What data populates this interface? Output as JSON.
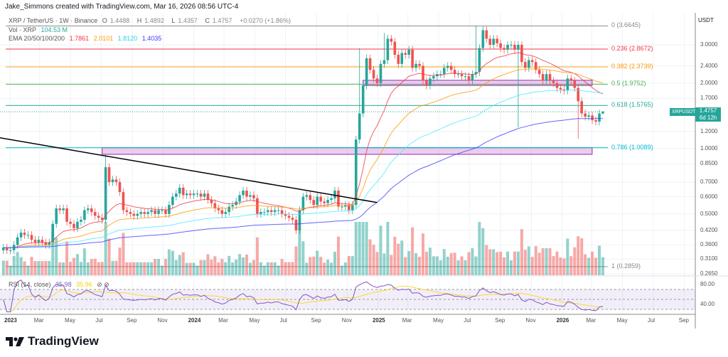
{
  "header": {
    "credit": "Jake_Simmons created with TradingView.com, Mar 16, 2026 08:56 UTC-4",
    "symbol": "XRP / TetherUS · 1W · Binance",
    "ohlc": {
      "o_label": "O",
      "o": "1.4488",
      "h_label": "H",
      "h": "1.4892",
      "l_label": "L",
      "l": "1.4357",
      "c_label": "C",
      "c": "1.4757",
      "change": "+0.0270 (+1.86%)"
    },
    "vol_label": "Vol · XRP",
    "vol_value": "104.53 M",
    "ema_label": "EMA 20/50/100/200",
    "ema_values": [
      "1.7861",
      "2.0101",
      "1.8120",
      "1.4035"
    ],
    "rsi_label": "RSI (14, close)",
    "rsi_value": "35.98",
    "rsi_ma_value": "35.96"
  },
  "price_axis": {
    "unit": "USDT",
    "ticks": [
      "3.0000",
      "2.4000",
      "2.0000",
      "1.7000",
      "1.2000",
      "1.0000",
      "0.8500",
      "0.7000",
      "0.6000",
      "0.5000",
      "0.4200",
      "0.3600",
      "0.3100",
      "0.2650"
    ],
    "current_symbol": "XRPUSDT",
    "current_price": "1.4757",
    "countdown": "6d 12h"
  },
  "rsi_axis": {
    "ticks": [
      "80.00",
      "40.00"
    ]
  },
  "time_axis": {
    "ticks": [
      {
        "label": "2023",
        "date": "2023-01-01",
        "bold": true
      },
      {
        "label": "Mar",
        "date": "2023-03-01"
      },
      {
        "label": "May",
        "date": "2023-05-01"
      },
      {
        "label": "Jul",
        "date": "2023-07-01"
      },
      {
        "label": "Sep",
        "date": "2023-09-01"
      },
      {
        "label": "Nov",
        "date": "2023-11-01"
      },
      {
        "label": "2024",
        "date": "2024-01-01",
        "bold": true
      },
      {
        "label": "Mar",
        "date": "2024-03-01"
      },
      {
        "label": "May",
        "date": "2024-05-01"
      },
      {
        "label": "Jul",
        "date": "2024-07-01"
      },
      {
        "label": "Sep",
        "date": "2024-09-01"
      },
      {
        "label": "Nov",
        "date": "2024-11-01"
      },
      {
        "label": "2025",
        "date": "2025-01-01",
        "bold": true
      },
      {
        "label": "Mar",
        "date": "2025-03-01"
      },
      {
        "label": "May",
        "date": "2025-05-01"
      },
      {
        "label": "Jul",
        "date": "2025-07-01"
      },
      {
        "label": "Sep",
        "date": "2025-09-01"
      },
      {
        "label": "Nov",
        "date": "2025-11-01"
      },
      {
        "label": "2026",
        "date": "2026-01-01",
        "bold": true
      },
      {
        "label": "Mar",
        "date": "2026-03-01"
      },
      {
        "label": "May",
        "date": "2026-05-01"
      },
      {
        "label": "Jul",
        "date": "2026-07-01"
      },
      {
        "label": "Sep",
        "date": "2026-09-01"
      }
    ]
  },
  "colors": {
    "up": "#26a69a",
    "down": "#ef5350",
    "ema20": "#f23645",
    "ema50": "#ff9800",
    "ema100": "#4de9ff",
    "ema200": "#3d3dff",
    "rsi": "#7e57c2",
    "rsi_ma": "#fdd835",
    "zone": "#9c27b0",
    "trendline": "#000000"
  },
  "brand": "TradingView",
  "chart_data": {
    "type": "candlestick",
    "scale": "log",
    "interval": "1W",
    "start": "2022-12-19",
    "ylim": [
      0.26,
      3.8
    ],
    "closes": [
      0.35,
      0.34,
      0.34,
      0.36,
      0.39,
      0.41,
      0.4,
      0.4,
      0.38,
      0.37,
      0.38,
      0.37,
      0.36,
      0.37,
      0.45,
      0.53,
      0.52,
      0.53,
      0.46,
      0.45,
      0.43,
      0.46,
      0.47,
      0.52,
      0.53,
      0.51,
      0.49,
      0.48,
      0.47,
      0.82,
      0.7,
      0.72,
      0.7,
      0.63,
      0.52,
      0.51,
      0.5,
      0.49,
      0.5,
      0.51,
      0.5,
      0.51,
      0.52,
      0.5,
      0.52,
      0.52,
      0.5,
      0.55,
      0.6,
      0.62,
      0.66,
      0.61,
      0.62,
      0.61,
      0.62,
      0.62,
      0.6,
      0.62,
      0.58,
      0.56,
      0.53,
      0.52,
      0.5,
      0.51,
      0.54,
      0.55,
      0.57,
      0.61,
      0.64,
      0.6,
      0.61,
      0.59,
      0.5,
      0.51,
      0.51,
      0.52,
      0.51,
      0.52,
      0.52,
      0.5,
      0.49,
      0.48,
      0.47,
      0.42,
      0.52,
      0.6,
      0.61,
      0.58,
      0.55,
      0.6,
      0.57,
      0.56,
      0.58,
      0.59,
      0.64,
      0.54,
      0.54,
      0.55,
      0.52,
      0.55,
      1.1,
      1.45,
      1.95,
      2.6,
      2.3,
      2.1,
      2.0,
      2.45,
      2.55,
      3.2,
      3.1,
      2.7,
      2.45,
      2.75,
      2.7,
      2.85,
      2.35,
      2.45,
      2.4,
      2.05,
      1.95,
      2.1,
      2.15,
      2.2,
      2.2,
      2.35,
      2.4,
      2.3,
      2.2,
      2.2,
      2.15,
      2.15,
      2.05,
      2.2,
      2.25,
      2.9,
      3.5,
      3.2,
      3.0,
      3.2,
      3.05,
      2.9,
      2.85,
      3.0,
      3.0,
      2.85,
      3.0,
      2.5,
      2.35,
      2.55,
      2.5,
      2.3,
      2.2,
      2.05,
      2.2,
      2.05,
      2.0,
      1.9,
      1.87,
      1.85,
      2.1,
      2.05,
      1.9,
      1.65,
      1.45,
      1.4,
      1.42,
      1.35,
      1.33,
      1.4488,
      1.4757
    ],
    "first_open": 0.34,
    "last_candle": {
      "open": 1.4488,
      "high": 1.4892,
      "low": 1.4357,
      "close": 1.4757
    },
    "notable_wicks": [
      {
        "date": "2023-07-10",
        "high": 0.94
      },
      {
        "date": "2024-11-25",
        "high": 2.9
      },
      {
        "date": "2025-01-13",
        "high": 3.4
      },
      {
        "date": "2025-07-14",
        "high": 3.6645
      },
      {
        "date": "2025-10-06",
        "low": 1.25
      },
      {
        "date": "2026-02-02",
        "low": 1.11
      }
    ],
    "indicators": [
      "EMA 20",
      "EMA 50",
      "EMA 100",
      "EMA 200",
      "Volume",
      "RSI 14 + MA"
    ],
    "fib_levels": [
      {
        "ratio": "0",
        "price": 3.6645,
        "label": "0 (3.6645)",
        "color": "#888888"
      },
      {
        "ratio": "0.236",
        "price": 2.8672,
        "label": "0.236 (2.8672)",
        "color": "#f23645"
      },
      {
        "ratio": "0.382",
        "price": 2.3739,
        "label": "0.382 (2.3739)",
        "color": "#ff9800"
      },
      {
        "ratio": "0.5",
        "price": 1.9752,
        "label": "0.5 (1.9752)",
        "color": "#4caf50"
      },
      {
        "ratio": "0.618",
        "price": 1.5765,
        "label": "0.618 (1.5765)",
        "color": "#26a69a"
      },
      {
        "ratio": "0.786",
        "price": 1.0089,
        "label": "0.786 (1.0089)",
        "color": "#00bcd4"
      },
      {
        "ratio": "1",
        "price": 0.2859,
        "label": "1 (0.2859)",
        "color": "#888888"
      }
    ],
    "zones": [
      {
        "from": "2023-07-03",
        "to": "2026-03-30",
        "top": 1.0089,
        "bottom": 0.94
      },
      {
        "from": "2024-12-02",
        "to": "2026-03-30",
        "top": 2.06,
        "bottom": 1.95
      }
    ],
    "trendline": {
      "from": {
        "date": "2022-12-12",
        "price": 1.12
      },
      "to": {
        "date": "2024-12-30",
        "price": 0.564
      }
    },
    "rsi_levels": [
      70,
      50,
      30
    ]
  }
}
